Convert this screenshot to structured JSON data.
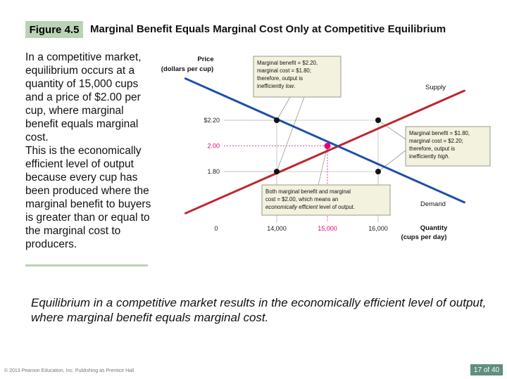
{
  "figure": {
    "label": "Figure 4.5",
    "title": "Marginal Benefit Equals Marginal Cost Only at Competitive Equilibrium"
  },
  "left_text": {
    "paragraph1": "In a competitive market, equilibrium occurs at a quantity of 15,000 cups and a price of $2.00 per cup, where marginal benefit equals marginal cost.",
    "paragraph2": "This is the economically efficient level of output because every cup has been produced where the marginal benefit to buyers is greater than or equal to the marginal cost to producers."
  },
  "caption": "Equilibrium in a competitive market results in the economically efficient level of output, where marginal benefit equals marginal cost.",
  "footer": "© 2013 Pearson Education, Inc. Publishing as Prentice Hall",
  "page_badge": "17 of 40",
  "colors": {
    "supply": "#c0262d",
    "demand": "#1f4fa8",
    "equilibrium": "#e0007a",
    "badge": "#b9d3b4",
    "callout_bg": "#f3f2df"
  },
  "chart_data": {
    "type": "line",
    "ylabel_line1": "Price",
    "ylabel_line2": "(dollars per cup)",
    "xlabel_line1": "Quantity",
    "xlabel_line2": "(cups per day)",
    "origin_label": "0",
    "x_ticks": [
      {
        "value": 14000,
        "label": "14,000",
        "highlight": false
      },
      {
        "value": 15000,
        "label": "15,000",
        "highlight": true
      },
      {
        "value": 16000,
        "label": "16,000",
        "highlight": false
      }
    ],
    "y_ticks": [
      {
        "value": 2.2,
        "label": "$2.20",
        "highlight": false
      },
      {
        "value": 2.0,
        "label": "2.00",
        "highlight": true
      },
      {
        "value": 1.8,
        "label": "1.80",
        "highlight": false
      }
    ],
    "series": [
      {
        "name": "Supply",
        "points": [
          [
            12200,
            1.475
          ],
          [
            17700,
            2.43
          ]
        ]
      },
      {
        "name": "Demand",
        "points": [
          [
            12200,
            2.525
          ],
          [
            17700,
            1.56
          ]
        ]
      }
    ],
    "equilibrium": {
      "x": 15000,
      "y": 2.0
    },
    "marked_points": [
      {
        "x": 14000,
        "y": 2.2
      },
      {
        "x": 14000,
        "y": 1.8
      },
      {
        "x": 16000,
        "y": 2.2
      },
      {
        "x": 16000,
        "y": 1.8
      }
    ],
    "callouts": [
      {
        "id": "low",
        "lines": [
          "Marginal benefit = $2.20,",
          "marginal cost = $1.80;",
          "therefore, output is"
        ],
        "last_plain": "inefficiently ",
        "last_italic": "low",
        "last_tail": "."
      },
      {
        "id": "high",
        "lines": [
          "Marginal benefit = $1.80,",
          "marginal cost = $2.20;",
          "therefore, output is"
        ],
        "last_plain": "inefficiently ",
        "last_italic": "high",
        "last_tail": "."
      },
      {
        "id": "eq",
        "lines": [
          "Both marginal benefit and marginal",
          "cost = $2.00, which means an"
        ],
        "last_plain": "",
        "last_italic": "economically efficient",
        "last_tail": " level of output."
      }
    ]
  }
}
